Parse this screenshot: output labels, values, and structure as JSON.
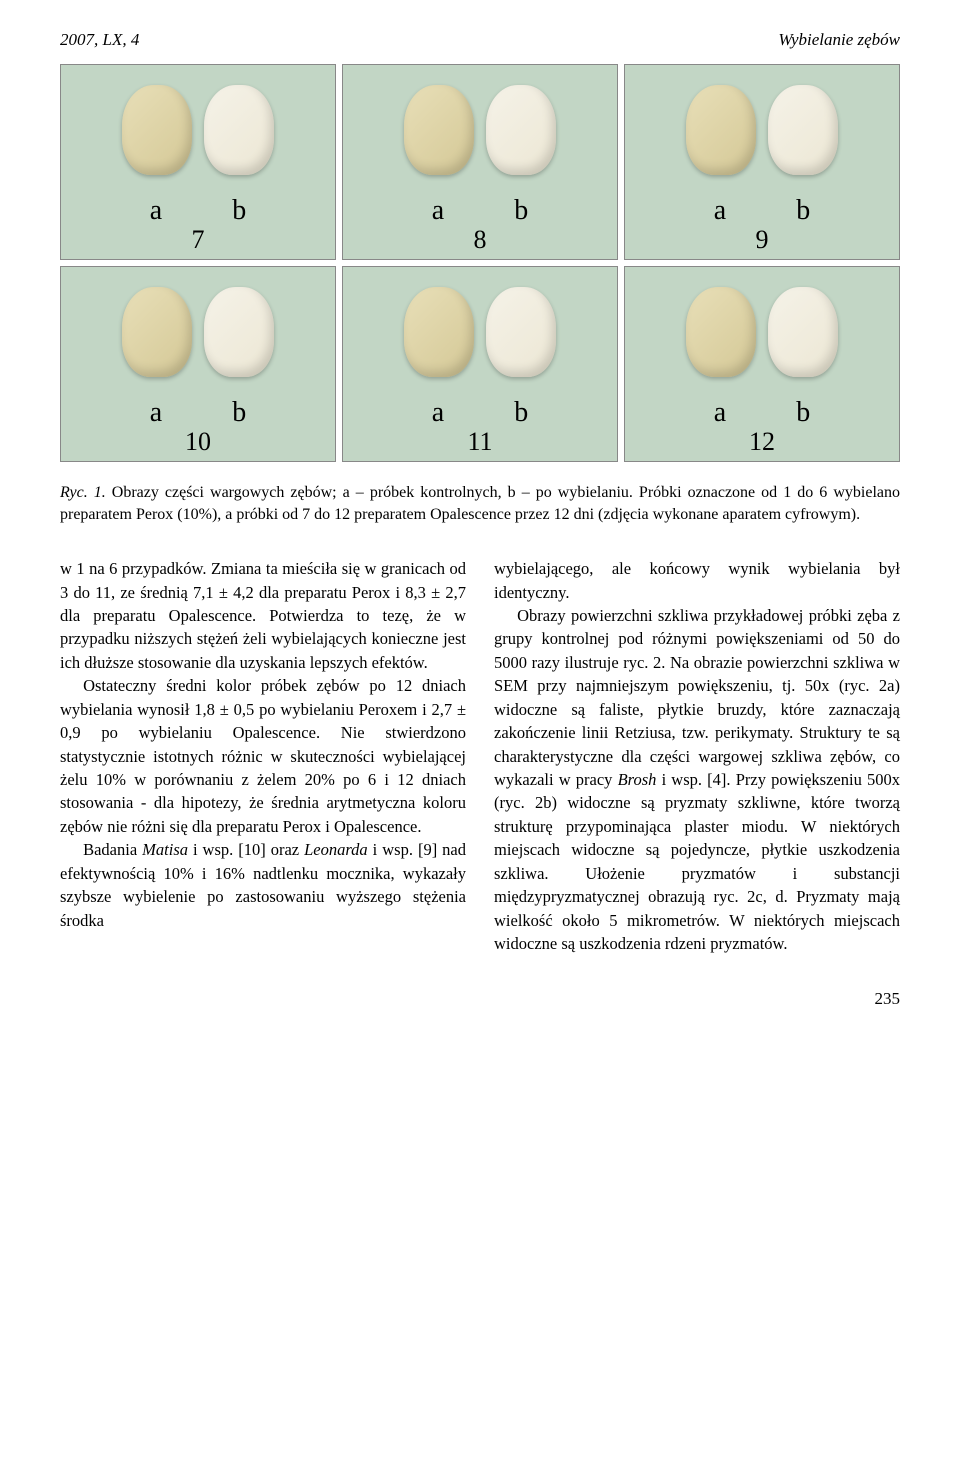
{
  "header": {
    "left": "2007, LX, 4",
    "right": "Wybielanie zębów"
  },
  "figure": {
    "panels": [
      {
        "num": "7",
        "a": "a",
        "b": "b"
      },
      {
        "num": "8",
        "a": "a",
        "b": "b"
      },
      {
        "num": "9",
        "a": "a",
        "b": "b"
      },
      {
        "num": "10",
        "a": "a",
        "b": "b"
      },
      {
        "num": "11",
        "a": "a",
        "b": "b"
      },
      {
        "num": "12",
        "a": "a",
        "b": "b"
      }
    ],
    "background_color": "#c2d6c5",
    "tooth_a_color": "#d4c896",
    "tooth_b_color": "#ece7d4"
  },
  "caption": {
    "lead": "Ryc. 1.",
    "text": " Obrazy części wargowych zębów; a – próbek kontrolnych, b – po wybielaniu. Próbki oznaczone od 1 do 6 wybielano preparatem Perox (10%), a próbki od 7 do 12 preparatem Opalescence przez 12 dni (zdjęcia wykonane aparatem cyfrowym)."
  },
  "left_col": {
    "p1": "w 1 na 6 przypadków. Zmiana ta mieściła się w granicach od 3 do 11, ze średnią 7,1 ± 4,2 dla preparatu Perox i 8,3 ± 2,7 dla preparatu Opalescence. Potwierdza to tezę, że w przypadku niższych stężeń żeli wybielających konieczne jest ich dłuższe stosowanie dla uzyskania lepszych efektów.",
    "p2": "Ostateczny średni kolor próbek zębów po 12 dniach wybielania wynosił 1,8 ± 0,5 po wybielaniu Peroxem i 2,7 ± 0,9 po wybielaniu Opalescence. Nie stwierdzono statystycznie istotnych różnic w skuteczności wybielającej żelu 10% w porównaniu z żelem 20% po 6 i 12 dniach stosowania - dla hipotezy, że średnia arytmetyczna koloru zębów nie różni się dla preparatu Perox i Opalescence.",
    "p3a": "Badania ",
    "p3_matisa": "Matisa",
    "p3b": " i wsp. [10] oraz ",
    "p3_leonarda": "Leonarda",
    "p3c": " i wsp. [9] nad efektywnością 10% i 16% nadtlenku mocznika, wykazały szybsze wybielenie po zastosowaniu wyższego stężenia środka"
  },
  "right_col": {
    "p1": "wybielającego, ale końcowy wynik wybielania był identyczny.",
    "p2a": "Obrazy powierzchni szkliwa przykładowej próbki zęba z grupy kontrolnej pod różnymi powiększeniami od 50 do 5000 razy ilustruje ryc. 2. Na obrazie powierzchni szkliwa w SEM przy najmniejszym powiększeniu, tj. 50x (ryc. 2a) widoczne są faliste, płytkie bruzdy, które zaznaczają zakończenie linii Retziusa, tzw. perikymaty. Struktury te są charakterystyczne dla części wargowej szkliwa zębów, co wykazali w pracy ",
    "p2_brosh": "Brosh",
    "p2b": " i wsp. [4]. Przy powiększeniu 500x (ryc. 2b) widoczne są pryzmaty szkliwne, które tworzą strukturę przypominająca plaster miodu. W niektórych miejscach widoczne są pojedyncze, płytkie uszkodzenia szkliwa. Ułożenie pryzmatów i substancji międzypryzmatycznej obrazują ryc. 2c, d. Pryzmaty mają wielkość około 5 mikrometrów. W niektórych miejscach widoczne są uszkodzenia rdzeni pryzmatów."
  },
  "page_number": "235"
}
